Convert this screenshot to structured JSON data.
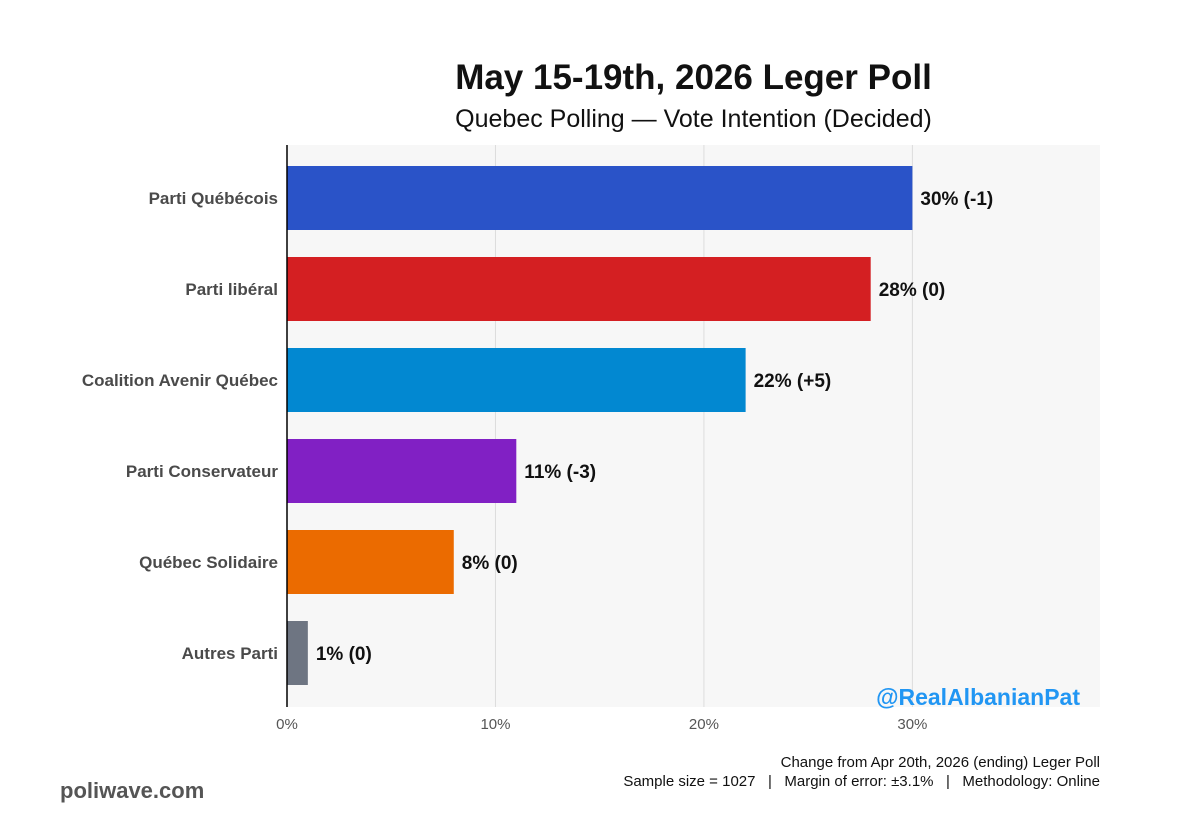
{
  "header": {
    "title": "May 15-19th, 2026 Leger Poll",
    "subtitle": "Quebec Polling — Vote Intention (Decided)"
  },
  "chart_data": {
    "type": "bar",
    "orientation": "horizontal",
    "categories": [
      "Parti Québécois",
      "Parti libéral",
      "Coalition Avenir Québec",
      "Parti Conservateur",
      "Québec Solidaire",
      "Autres Parti"
    ],
    "values": [
      30,
      28,
      22,
      11,
      8,
      1
    ],
    "data_labels": [
      "30% (-1)",
      "28% (0)",
      "22% (+5)",
      "11% (-3)",
      "8% (0)",
      "1% (0)"
    ],
    "colors": [
      "#2a53c8",
      "#d41f22",
      "#0288d1",
      "#8120c4",
      "#eb6b00",
      "#6e7582"
    ],
    "xlim": [
      0,
      39
    ],
    "xticks": [
      0,
      10,
      20,
      30
    ],
    "xtick_labels": [
      "0%",
      "10%",
      "20%",
      "30%"
    ],
    "grid": "vertical",
    "background": "#f7f7f7"
  },
  "watermark": {
    "text": "@RealAlbanianPat",
    "color": "#2196f3"
  },
  "footer": {
    "change_note": "Change from Apr 20th, 2026 (ending) Leger Poll",
    "details": "Sample size = 1027   |   Margin of error: ±3.1%   |   Methodology: Online",
    "brand": "poliwave.com"
  }
}
